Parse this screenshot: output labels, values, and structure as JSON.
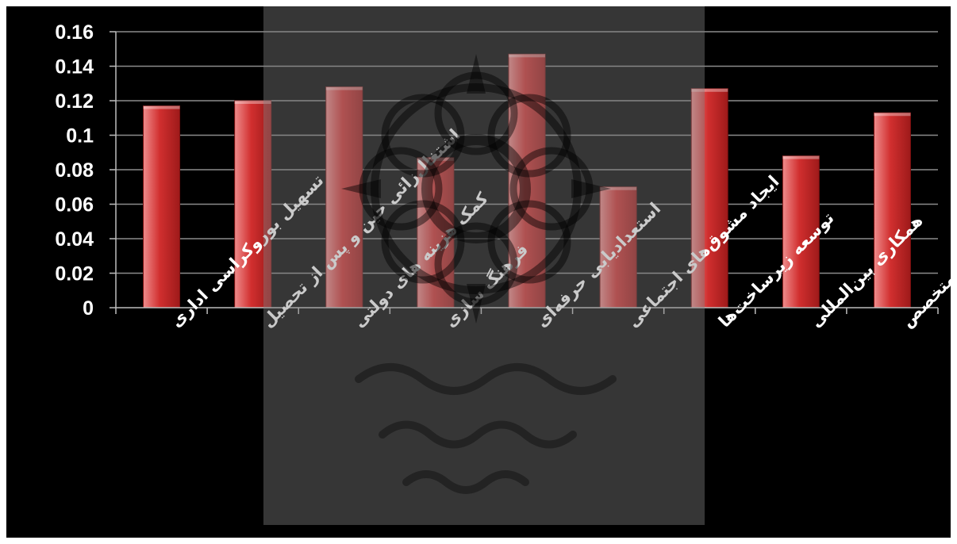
{
  "chart_data": {
    "type": "bar",
    "categories": [
      "تسهیل بوروکراسی اداری",
      "اشتغال‌زائی حین و پس از تحصیل",
      "کمک هزینه های دولتی",
      "فرهنگ سازی",
      "استعدادیابی حرفه‌ای",
      "ایجاد مشوق‌های اجتماعی",
      "توسعه زیرساخت‌ها",
      "همکاری بین‌المللی",
      "افزایش نیروی متخصص"
    ],
    "values": [
      0.117,
      0.12,
      0.128,
      0.087,
      0.147,
      0.07,
      0.127,
      0.088,
      0.113
    ],
    "y_ticks": [
      "0",
      "0.02",
      "0.04",
      "0.06",
      "0.08",
      "0.1",
      "0.12",
      "0.14",
      "0.16"
    ],
    "ylim": [
      0,
      0.16
    ],
    "grid": true,
    "legend": "none",
    "colors": {
      "background": "#000000",
      "bar_light": "#ef8c8c",
      "bar_main": "#d12f2f",
      "bar_dark": "#9e1a1a",
      "grid": "#8c8c8c",
      "text": "#ffffff"
    }
  }
}
